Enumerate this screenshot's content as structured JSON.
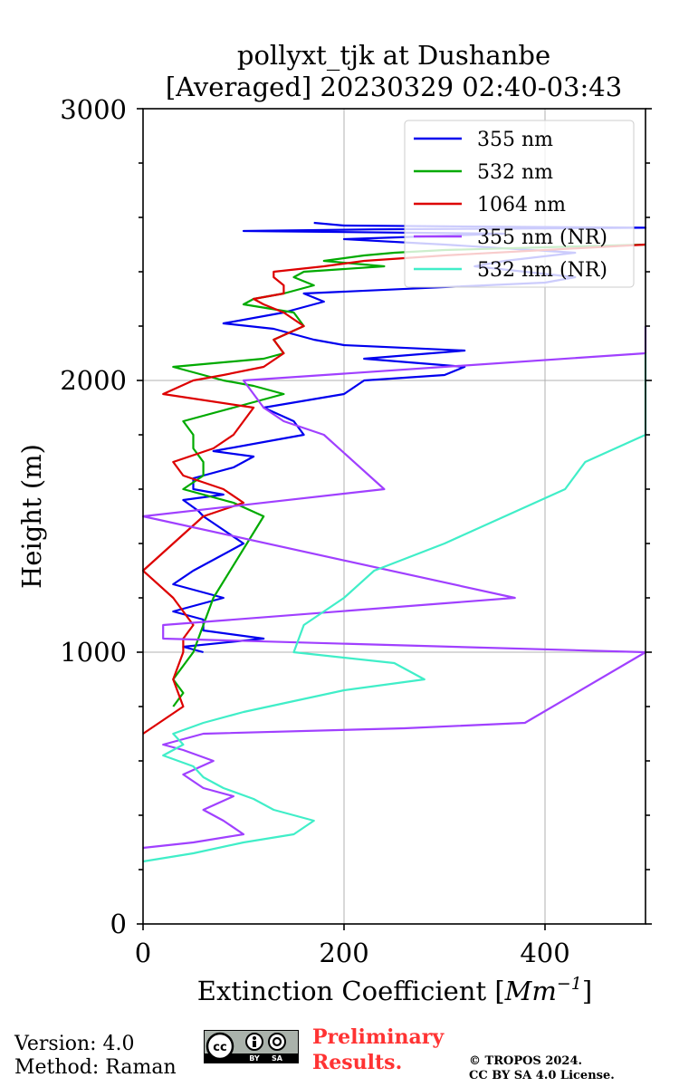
{
  "chart_data": {
    "type": "line",
    "title_line1": "pollyxt_tjk at Dushanbe",
    "title_line2": "[Averaged] 20230329 02:40-03:43",
    "xlabel": "Extinction Coefficient [$Mm^{-1}$]",
    "xlabel_text": "Extinction Coefficient [",
    "xlabel_unit": "Mm",
    "xlabel_exp": "−1",
    "xlabel_close": "]",
    "ylabel": "Height (m)",
    "xlim": [
      0,
      500
    ],
    "ylim": [
      0,
      3000
    ],
    "x_ticks": [
      "0",
      "200",
      "400"
    ],
    "y_ticks": [
      "0",
      "1000",
      "2000",
      "3000"
    ],
    "grid": true,
    "legend_position": "upper right",
    "series": [
      {
        "name": "355 nm",
        "color": "#0000ee",
        "x": [
          60,
          40,
          120,
          60,
          60,
          30,
          80,
          30,
          50,
          100,
          80,
          60,
          55,
          40,
          80,
          50,
          50,
          90,
          110,
          70,
          130,
          160,
          150,
          120,
          200,
          220,
          300,
          320,
          220,
          320,
          200,
          170,
          130,
          80,
          140,
          180,
          160,
          400,
          430,
          330,
          360,
          430,
          300,
          200,
          360,
          100,
          230,
          420,
          500,
          200,
          170
        ],
        "y": [
          1000,
          1020,
          1050,
          1080,
          1120,
          1150,
          1200,
          1250,
          1300,
          1400,
          1450,
          1500,
          1520,
          1560,
          1580,
          1600,
          1640,
          1680,
          1720,
          1740,
          1780,
          1800,
          1850,
          1900,
          1950,
          2000,
          2020,
          2050,
          2080,
          2110,
          2130,
          2150,
          2190,
          2210,
          2250,
          2290,
          2320,
          2360,
          2380,
          2420,
          2440,
          2470,
          2500,
          2520,
          2540,
          2550,
          2556,
          2560,
          2562,
          2570,
          2580
        ]
      },
      {
        "name": "532 nm",
        "color": "#00aa00",
        "x": [
          30,
          40,
          30,
          40,
          50,
          70,
          120,
          90,
          40,
          60,
          60,
          50,
          50,
          40,
          90,
          140,
          110,
          80,
          60,
          30,
          120,
          140,
          130,
          160,
          150,
          100,
          110,
          140,
          170,
          150,
          160,
          240,
          180,
          220,
          250,
          300,
          400,
          500
        ],
        "y": [
          800,
          850,
          900,
          950,
          1000,
          1200,
          1500,
          1550,
          1600,
          1650,
          1700,
          1750,
          1800,
          1850,
          1900,
          1950,
          1980,
          2000,
          2020,
          2050,
          2080,
          2100,
          2150,
          2200,
          2250,
          2280,
          2300,
          2320,
          2350,
          2380,
          2400,
          2420,
          2440,
          2460,
          2470,
          2480,
          2490,
          2500
        ]
      },
      {
        "name": "1064 nm",
        "color": "#dd0000",
        "x": [
          0,
          20,
          40,
          30,
          40,
          40,
          50,
          30,
          0,
          30,
          60,
          100,
          80,
          40,
          30,
          70,
          90,
          100,
          110,
          20,
          50,
          80,
          120,
          140,
          130,
          160,
          140,
          120,
          110,
          140,
          140,
          130,
          130,
          180,
          220,
          300,
          400,
          500
        ],
        "y": [
          700,
          750,
          800,
          900,
          1000,
          1050,
          1100,
          1200,
          1300,
          1400,
          1500,
          1550,
          1600,
          1650,
          1700,
          1750,
          1800,
          1850,
          1900,
          1950,
          2000,
          2020,
          2050,
          2100,
          2150,
          2200,
          2250,
          2280,
          2300,
          2320,
          2350,
          2380,
          2400,
          2420,
          2440,
          2460,
          2480,
          2500
        ]
      },
      {
        "name": "355 nm (NR)",
        "color": "#a040ff",
        "x": [
          0,
          50,
          100,
          80,
          60,
          90,
          60,
          40,
          70,
          40,
          20,
          60,
          260,
          380,
          500,
          20,
          20,
          370,
          0,
          240,
          180,
          140,
          120,
          100,
          500,
          500
        ],
        "y": [
          280,
          300,
          330,
          380,
          420,
          470,
          500,
          550,
          600,
          640,
          660,
          700,
          720,
          740,
          1000,
          1050,
          1100,
          1200,
          1500,
          1600,
          1800,
          1850,
          1900,
          2000,
          2100,
          2200
        ]
      },
      {
        "name": "532 nm (NR)",
        "color": "#40eec8",
        "x": [
          0,
          50,
          100,
          150,
          170,
          130,
          110,
          80,
          60,
          50,
          20,
          40,
          30,
          60,
          100,
          150,
          200,
          280,
          250,
          150,
          160,
          200,
          230,
          300,
          360,
          420,
          440,
          500,
          500
        ],
        "y": [
          230,
          260,
          300,
          330,
          380,
          420,
          460,
          500,
          540,
          580,
          620,
          660,
          700,
          740,
          780,
          820,
          860,
          900,
          960,
          1000,
          1100,
          1200,
          1300,
          1400,
          1500,
          1600,
          1700,
          1800,
          2100
        ]
      }
    ]
  },
  "footer": {
    "version": "Version: 4.0",
    "method": "Method: Raman",
    "preliminary_line1": "Preliminary",
    "preliminary_line2": "Results.",
    "copyright_line1": "© TROPOS 2024.",
    "copyright_line2": "CC BY SA 4.0 License.",
    "cc_label": "cc",
    "by_label": "BY",
    "sa_label": "SA"
  }
}
